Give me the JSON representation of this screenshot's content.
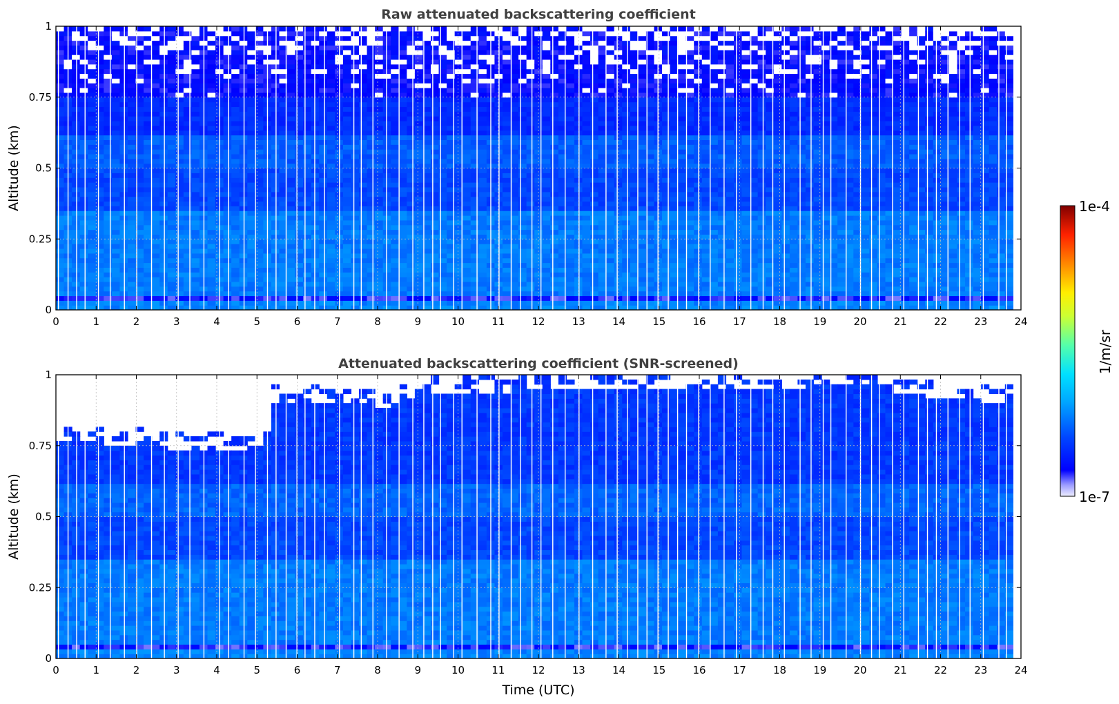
{
  "chart_data": [
    {
      "type": "heatmap",
      "title": "Raw attenuated backscattering coefficient",
      "xlabel": "",
      "ylabel": "Altitude (km)",
      "xlim": [
        0,
        24
      ],
      "ylim": [
        0,
        1
      ],
      "x_ticks": [
        "0",
        "1",
        "2",
        "3",
        "4",
        "5",
        "6",
        "7",
        "8",
        "9",
        "10",
        "11",
        "12",
        "13",
        "14",
        "15",
        "16",
        "17",
        "18",
        "19",
        "20",
        "21",
        "22",
        "23",
        "24"
      ],
      "y_ticks": [
        "0",
        "0.25",
        "0.5",
        "0.75",
        "1"
      ],
      "data_end_time": 23.8,
      "grid": true,
      "colorscale": "jet",
      "screened": false,
      "layers": [
        {
          "from_alt": 0.0,
          "to_alt": 0.03,
          "level": 0.28
        },
        {
          "from_alt": 0.03,
          "to_alt": 0.05,
          "level": 0.08
        },
        {
          "from_alt": 0.05,
          "to_alt": 0.35,
          "level": 0.27
        },
        {
          "from_alt": 0.35,
          "to_alt": 0.5,
          "level": 0.2
        },
        {
          "from_alt": 0.5,
          "to_alt": 0.62,
          "level": 0.23
        },
        {
          "from_alt": 0.62,
          "to_alt": 0.75,
          "level": 0.16
        },
        {
          "from_alt": 0.75,
          "to_alt": 1.0,
          "level": 0.1
        }
      ]
    },
    {
      "type": "heatmap",
      "title": "Attenuated backscattering coefficient (SNR-screened)",
      "xlabel": "Time (UTC)",
      "ylabel": "Altitude (km)",
      "xlim": [
        0,
        24
      ],
      "ylim": [
        0,
        1
      ],
      "x_ticks": [
        "0",
        "1",
        "2",
        "3",
        "4",
        "5",
        "6",
        "7",
        "8",
        "9",
        "10",
        "11",
        "12",
        "13",
        "14",
        "15",
        "16",
        "17",
        "18",
        "19",
        "20",
        "21",
        "22",
        "23",
        "24"
      ],
      "y_ticks": [
        "0",
        "0.25",
        "0.5",
        "0.75",
        "1"
      ],
      "data_end_time": 23.8,
      "grid": true,
      "colorscale": "jet",
      "screened": true,
      "screen_top_km": [
        {
          "time": 0.0,
          "alt": 0.76
        },
        {
          "time": 1.0,
          "alt": 0.76
        },
        {
          "time": 2.0,
          "alt": 0.75
        },
        {
          "time": 3.0,
          "alt": 0.74
        },
        {
          "time": 4.0,
          "alt": 0.74
        },
        {
          "time": 5.0,
          "alt": 0.74
        },
        {
          "time": 5.3,
          "alt": 0.76
        },
        {
          "time": 5.4,
          "alt": 0.9
        },
        {
          "time": 7.0,
          "alt": 0.9
        },
        {
          "time": 8.0,
          "alt": 0.88
        },
        {
          "time": 9.0,
          "alt": 0.93
        },
        {
          "time": 11.0,
          "alt": 0.94
        },
        {
          "time": 13.0,
          "alt": 0.95
        },
        {
          "time": 15.0,
          "alt": 0.95
        },
        {
          "time": 17.0,
          "alt": 0.95
        },
        {
          "time": 19.0,
          "alt": 0.96
        },
        {
          "time": 20.0,
          "alt": 0.98
        },
        {
          "time": 21.0,
          "alt": 0.93
        },
        {
          "time": 22.0,
          "alt": 0.92
        },
        {
          "time": 23.8,
          "alt": 0.9
        }
      ],
      "layers": [
        {
          "from_alt": 0.0,
          "to_alt": 0.03,
          "level": 0.28
        },
        {
          "from_alt": 0.03,
          "to_alt": 0.05,
          "level": 0.08
        },
        {
          "from_alt": 0.05,
          "to_alt": 0.35,
          "level": 0.27
        },
        {
          "from_alt": 0.35,
          "to_alt": 0.5,
          "level": 0.2
        },
        {
          "from_alt": 0.5,
          "to_alt": 0.62,
          "level": 0.24
        },
        {
          "from_alt": 0.62,
          "to_alt": 1.0,
          "level": 0.18
        }
      ]
    }
  ],
  "colorbar": {
    "max_label": "1e-4",
    "min_label": "1e-7",
    "unit_label": "1/m/sr",
    "scale": "log"
  }
}
